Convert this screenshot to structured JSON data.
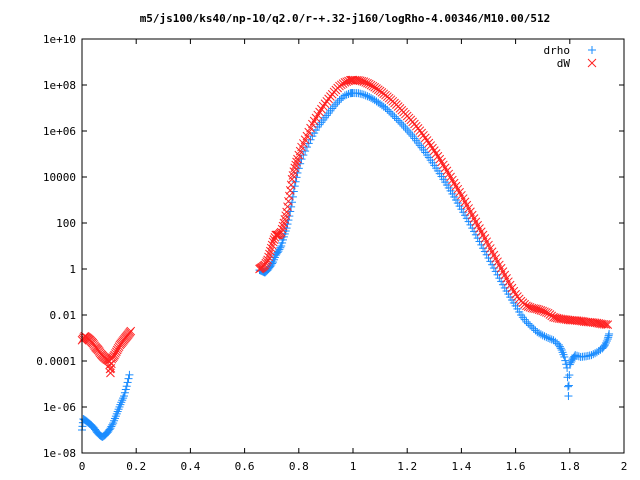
{
  "chart_data": {
    "type": "scatter",
    "title": "m5/js100/ks40/np-10/q2.0/r-+.32-j160/logRho-4.00346/M10.00/512",
    "xlabel": "",
    "ylabel": "",
    "xlim": [
      0,
      2
    ],
    "ylim": [
      1e-08,
      10000000000.0
    ],
    "y_scale": "log",
    "x_ticks": [
      {
        "value": 0,
        "label": "0"
      },
      {
        "value": 0.2,
        "label": "0.2"
      },
      {
        "value": 0.4,
        "label": "0.4"
      },
      {
        "value": 0.6,
        "label": "0.6"
      },
      {
        "value": 0.8,
        "label": "0.8"
      },
      {
        "value": 1.0,
        "label": "1"
      },
      {
        "value": 1.2,
        "label": "1.2"
      },
      {
        "value": 1.4,
        "label": "1.4"
      },
      {
        "value": 1.6,
        "label": "1.6"
      },
      {
        "value": 1.8,
        "label": "1.8"
      },
      {
        "value": 2.0,
        "label": "2"
      }
    ],
    "y_ticks": [
      {
        "value": 1e-08,
        "label": "1e-08"
      },
      {
        "value": 1e-06,
        "label": "1e-06"
      },
      {
        "value": 0.0001,
        "label": "0.0001"
      },
      {
        "value": 0.01,
        "label": "0.01"
      },
      {
        "value": 1,
        "label": "1"
      },
      {
        "value": 100,
        "label": "100"
      },
      {
        "value": 10000,
        "label": "10000"
      },
      {
        "value": 1000000.0,
        "label": "1e+06"
      },
      {
        "value": 100000000.0,
        "label": "1e+08"
      },
      {
        "value": 10000000000.0,
        "label": "1e+10"
      }
    ],
    "grid": false,
    "legend_position": "top-right",
    "series": [
      {
        "name": "drho",
        "color": "#1a8cff",
        "marker": "plus",
        "points": [
          [
            0.0,
            1e-07
          ],
          [
            0.005,
            3e-07
          ],
          [
            0.015,
            2.5e-07
          ],
          [
            0.025,
            2e-07
          ],
          [
            0.035,
            1.6e-07
          ],
          [
            0.045,
            1.2e-07
          ],
          [
            0.055,
            8e-08
          ],
          [
            0.065,
            6e-08
          ],
          [
            0.075,
            5e-08
          ],
          [
            0.085,
            6e-08
          ],
          [
            0.095,
            8e-08
          ],
          [
            0.105,
            1.2e-07
          ],
          [
            0.115,
            2e-07
          ],
          [
            0.125,
            4e-07
          ],
          [
            0.135,
            8e-07
          ],
          [
            0.145,
            1.6e-06
          ],
          [
            0.155,
            3e-06
          ],
          [
            0.165,
            8e-06
          ],
          [
            0.175,
            2.5e-05
          ],
          [
            0.655,
            0.9
          ],
          [
            0.665,
            0.8
          ],
          [
            0.675,
            0.7
          ],
          [
            0.685,
            0.9
          ],
          [
            0.695,
            1.3
          ],
          [
            0.705,
            2
          ],
          [
            0.715,
            4
          ],
          [
            0.725,
            6
          ],
          [
            0.735,
            10
          ],
          [
            0.745,
            25
          ],
          [
            0.755,
            60
          ],
          [
            0.765,
            200
          ],
          [
            0.775,
            800
          ],
          [
            0.785,
            4000
          ],
          [
            0.795,
            15000
          ],
          [
            0.81,
            60000
          ],
          [
            0.83,
            200000.0
          ],
          [
            0.85,
            600000.0
          ],
          [
            0.87,
            1500000.0
          ],
          [
            0.89,
            3000000.0
          ],
          [
            0.91,
            6000000.0
          ],
          [
            0.93,
            12000000.0
          ],
          [
            0.95,
            22000000.0
          ],
          [
            0.97,
            35000000.0
          ],
          [
            0.99,
            44000000.0
          ],
          [
            1.0,
            45000000.0
          ],
          [
            1.02,
            44000000.0
          ],
          [
            1.04,
            38000000.0
          ],
          [
            1.06,
            30000000.0
          ],
          [
            1.08,
            22000000.0
          ],
          [
            1.1,
            15000000.0
          ],
          [
            1.12,
            10000000.0
          ],
          [
            1.14,
            6000000.0
          ],
          [
            1.16,
            3500000.0
          ],
          [
            1.18,
            2000000.0
          ],
          [
            1.2,
            1100000.0
          ],
          [
            1.22,
            600000.0
          ],
          [
            1.24,
            300000.0
          ],
          [
            1.26,
            150000.0
          ],
          [
            1.28,
            70000.0
          ],
          [
            1.3,
            32000.0
          ],
          [
            1.32,
            14000.0
          ],
          [
            1.34,
            6000
          ],
          [
            1.36,
            2500
          ],
          [
            1.38,
            1000
          ],
          [
            1.4,
            400
          ],
          [
            1.42,
            160
          ],
          [
            1.44,
            60
          ],
          [
            1.46,
            22
          ],
          [
            1.48,
            8
          ],
          [
            1.5,
            3
          ],
          [
            1.52,
            1.1
          ],
          [
            1.54,
            0.4
          ],
          [
            1.56,
            0.15
          ],
          [
            1.58,
            0.06
          ],
          [
            1.6,
            0.025
          ],
          [
            1.62,
            0.01
          ],
          [
            1.64,
            0.005
          ],
          [
            1.66,
            0.003
          ],
          [
            1.68,
            0.0018
          ],
          [
            1.7,
            0.0013
          ],
          [
            1.72,
            0.001
          ],
          [
            1.74,
            0.0008
          ],
          [
            1.76,
            0.0005
          ],
          [
            1.77,
            0.0003
          ],
          [
            1.78,
            0.00015
          ],
          [
            1.79,
            5e-05
          ],
          [
            1.795,
            3e-06
          ],
          [
            1.8,
            7e-05
          ],
          [
            1.81,
            0.00012
          ],
          [
            1.82,
            0.00018
          ],
          [
            1.84,
            0.00015
          ],
          [
            1.86,
            0.00016
          ],
          [
            1.88,
            0.00018
          ],
          [
            1.9,
            0.00024
          ],
          [
            1.92,
            0.00035
          ],
          [
            1.93,
            0.0005
          ],
          [
            1.94,
            0.0009
          ],
          [
            1.945,
            0.0015
          ]
        ]
      },
      {
        "name": "dW",
        "color": "#ff2020",
        "marker": "cross",
        "points": [
          [
            0.0,
            0.0008
          ],
          [
            0.01,
            0.0012
          ],
          [
            0.02,
            0.001
          ],
          [
            0.03,
            0.0008
          ],
          [
            0.04,
            0.0006
          ],
          [
            0.05,
            0.0004
          ],
          [
            0.06,
            0.0003
          ],
          [
            0.07,
            0.0002
          ],
          [
            0.08,
            0.00015
          ],
          [
            0.09,
            0.00012
          ],
          [
            0.1,
            0.0001
          ],
          [
            0.105,
            3e-05
          ],
          [
            0.11,
            0.00012
          ],
          [
            0.12,
            0.00018
          ],
          [
            0.13,
            0.0003
          ],
          [
            0.14,
            0.0005
          ],
          [
            0.15,
            0.0007
          ],
          [
            0.16,
            0.001
          ],
          [
            0.17,
            0.0014
          ],
          [
            0.18,
            0.002
          ],
          [
            0.655,
            1.0
          ],
          [
            0.665,
            1.2
          ],
          [
            0.675,
            1.5
          ],
          [
            0.685,
            2.5
          ],
          [
            0.695,
            6
          ],
          [
            0.705,
            15
          ],
          [
            0.715,
            30
          ],
          [
            0.725,
            30
          ],
          [
            0.735,
            40
          ],
          [
            0.745,
            100
          ],
          [
            0.755,
            300
          ],
          [
            0.765,
            1500
          ],
          [
            0.775,
            8000
          ],
          [
            0.785,
            25000
          ],
          [
            0.795,
            60000
          ],
          [
            0.81,
            200000.0
          ],
          [
            0.83,
            600000.0
          ],
          [
            0.85,
            2000000.0
          ],
          [
            0.87,
            5000000.0
          ],
          [
            0.89,
            12000000.0
          ],
          [
            0.91,
            25000000.0
          ],
          [
            0.93,
            50000000.0
          ],
          [
            0.95,
            90000000.0
          ],
          [
            0.97,
            130000000.0
          ],
          [
            0.99,
            160000000.0
          ],
          [
            1.0,
            165000000.0
          ],
          [
            1.02,
            160000000.0
          ],
          [
            1.04,
            140000000.0
          ],
          [
            1.06,
            110000000.0
          ],
          [
            1.08,
            80000000.0
          ],
          [
            1.1,
            55000000.0
          ],
          [
            1.12,
            36000000.0
          ],
          [
            1.14,
            23000000.0
          ],
          [
            1.16,
            14000000.0
          ],
          [
            1.18,
            8000000.0
          ],
          [
            1.2,
            4500000.0
          ],
          [
            1.22,
            2500000.0
          ],
          [
            1.24,
            1300000.0
          ],
          [
            1.26,
            650000.0
          ],
          [
            1.28,
            300000.0
          ],
          [
            1.3,
            140000.0
          ],
          [
            1.32,
            60000.0
          ],
          [
            1.34,
            25000.0
          ],
          [
            1.36,
            10000.0
          ],
          [
            1.38,
            4000
          ],
          [
            1.4,
            1600
          ],
          [
            1.42,
            600
          ],
          [
            1.44,
            220
          ],
          [
            1.46,
            80
          ],
          [
            1.48,
            30
          ],
          [
            1.5,
            11
          ],
          [
            1.52,
            4
          ],
          [
            1.54,
            1.5
          ],
          [
            1.56,
            0.55
          ],
          [
            1.58,
            0.2
          ],
          [
            1.6,
            0.08
          ],
          [
            1.62,
            0.04
          ],
          [
            1.64,
            0.025
          ],
          [
            1.66,
            0.02
          ],
          [
            1.68,
            0.018
          ],
          [
            1.7,
            0.015
          ],
          [
            1.72,
            0.012
          ],
          [
            1.74,
            0.008
          ],
          [
            1.76,
            0.007
          ],
          [
            1.78,
            0.0065
          ],
          [
            1.8,
            0.006
          ],
          [
            1.82,
            0.0058
          ],
          [
            1.84,
            0.0055
          ],
          [
            1.86,
            0.005
          ],
          [
            1.88,
            0.0048
          ],
          [
            1.9,
            0.0045
          ],
          [
            1.92,
            0.004
          ],
          [
            1.94,
            0.0038
          ]
        ]
      }
    ]
  }
}
